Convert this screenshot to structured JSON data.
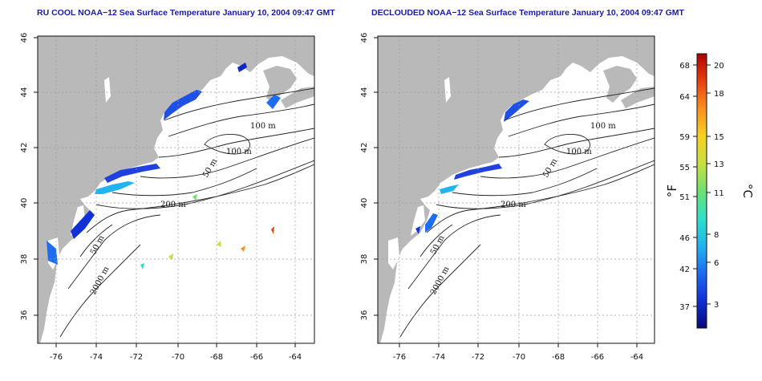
{
  "maps": [
    {
      "title": "RU COOL NOAA−12 Sea Surface Temperature January 10, 2004 09:47 GMT",
      "contour_labels": [
        "100 m",
        "100 m",
        "50 m",
        "200 m",
        "50 m",
        "2000 m"
      ]
    },
    {
      "title": "DECLOUDED NOAA−12 Sea Surface Temperature January 10, 2004 09:47 GMT",
      "contour_labels": [
        "100 m",
        "100 m",
        "50 m",
        "200 m",
        "50 m",
        "2000 m"
      ]
    }
  ],
  "axes": {
    "lon_ticks": [
      "-76",
      "-74",
      "-72",
      "-70",
      "-68",
      "-66",
      "-64"
    ],
    "lat_ticks": [
      "36",
      "38",
      "40",
      "42",
      "44",
      "46"
    ]
  },
  "colorbar": {
    "f_ticks": [
      "68",
      "64",
      "59",
      "55",
      "51",
      "46",
      "42",
      "37"
    ],
    "c_ticks": [
      "20",
      "18",
      "15",
      "13",
      "11",
      "8",
      "6",
      "3"
    ],
    "f_unit": "°F",
    "c_unit": "°C",
    "colors": [
      "#08087a",
      "#1030d8",
      "#1e6cf0",
      "#20b4f0",
      "#30e0c8",
      "#6ce070",
      "#c8e040",
      "#f8d020",
      "#f89020",
      "#e84010",
      "#b00000"
    ]
  },
  "colors": {
    "land": "#b9b9b9",
    "water": "#ffffff",
    "contour": "#222222",
    "grid": "#9a9a9a"
  }
}
